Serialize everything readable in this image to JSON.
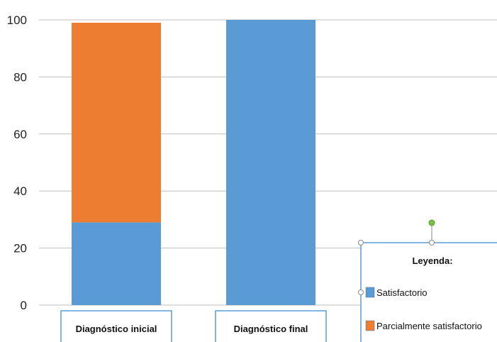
{
  "chart_data": {
    "type": "bar",
    "stacked": true,
    "categories": [
      "Diagnóstico  inicial",
      "Diagnóstico  final"
    ],
    "series": [
      {
        "name": "Satisfactorio",
        "values": [
          29,
          100
        ],
        "color": "#5b9bd5"
      },
      {
        "name": "Parcialmente satisfactorio",
        "values": [
          70,
          0
        ],
        "color": "#ed7d31"
      }
    ],
    "ylim": [
      0,
      100
    ],
    "yticks": [
      0,
      20,
      40,
      60,
      80,
      100
    ],
    "grid": true,
    "legend": {
      "title": "Leyenda:",
      "placement": "bottom-right"
    }
  }
}
